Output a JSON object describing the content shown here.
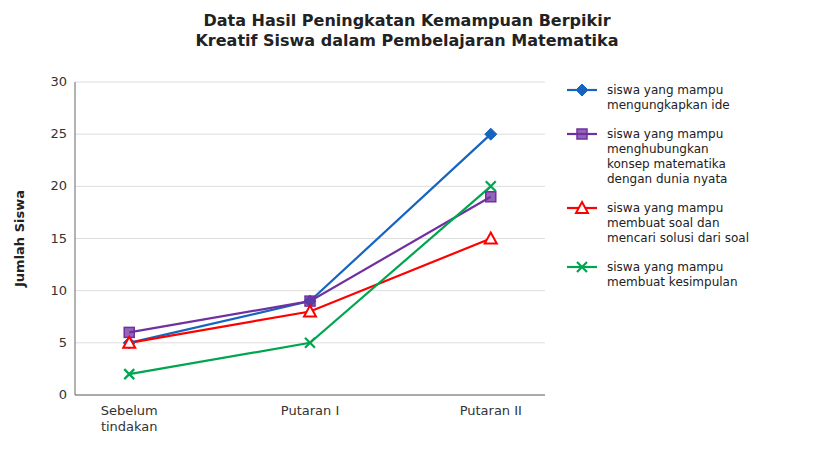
{
  "chart_data": {
    "type": "line",
    "title": "Data Hasil Peningkatan Kemampuan Berpikir\nKreatif Siswa dalam Pembelajaran Matematika",
    "categories": [
      "Sebelum\ntindakan",
      "Putaran I",
      "Putaran II"
    ],
    "ylabel": "Jumlah Siswa",
    "ylim": [
      0,
      30
    ],
    "yticks": [
      0,
      5,
      10,
      15,
      20,
      25,
      30
    ],
    "grid": true,
    "legend": "right",
    "series": [
      {
        "name": "siswa yang mampu\nmengungkapkan ide",
        "color": "#1565c0",
        "marker": "diamond",
        "values": [
          5,
          9,
          25
        ]
      },
      {
        "name": "siswa yang mampu\nmenghubungkan\nkonsep matematika\ndengan dunia nyata",
        "color": "#7030a0",
        "marker": "square",
        "values": [
          6,
          9,
          19
        ]
      },
      {
        "name": "siswa yang mampu\nmembuat soal dan\nmencari solusi dari soal",
        "color": "#ff0000",
        "marker": "triangle",
        "values": [
          5,
          8,
          15
        ]
      },
      {
        "name": "siswa yang mampu\nmembuat kesimpulan",
        "color": "#00a550",
        "marker": "x",
        "values": [
          2,
          5,
          20
        ]
      }
    ]
  }
}
